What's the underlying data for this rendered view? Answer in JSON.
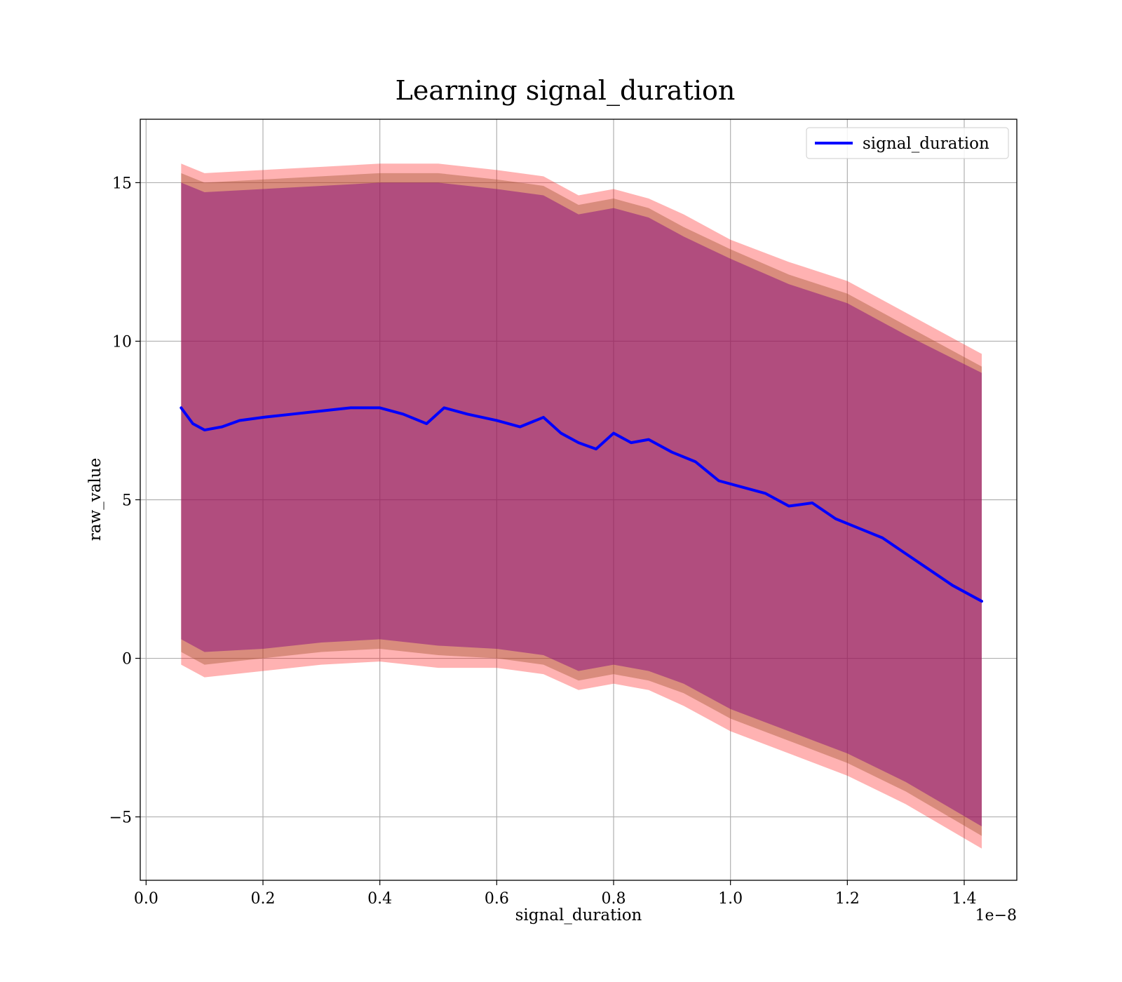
{
  "chart_data": {
    "type": "line",
    "title": "Learning signal_duration",
    "xlabel": "signal_duration",
    "ylabel": "raw_value",
    "x_offset_text": "1e−8",
    "x_scale_note": "x values shown in units of 1e-8",
    "xlim": [
      -0.01,
      1.49
    ],
    "ylim": [
      -7.0,
      17.0
    ],
    "grid": true,
    "legend_position": "top-right",
    "x_ticks": [
      {
        "value": 0.0,
        "label": "0.0"
      },
      {
        "value": 0.2,
        "label": "0.2"
      },
      {
        "value": 0.4,
        "label": "0.4"
      },
      {
        "value": 0.6,
        "label": "0.6"
      },
      {
        "value": 0.8,
        "label": "0.8"
      },
      {
        "value": 1.0,
        "label": "1.0"
      },
      {
        "value": 1.2,
        "label": "1.2"
      },
      {
        "value": 1.4,
        "label": "1.4"
      }
    ],
    "y_ticks": [
      {
        "value": -5,
        "label": "−5"
      },
      {
        "value": 0,
        "label": "0"
      },
      {
        "value": 5,
        "label": "5"
      },
      {
        "value": 10,
        "label": "10"
      },
      {
        "value": 15,
        "label": "15"
      }
    ],
    "colors": {
      "line": "#0000ff",
      "outer_band": "#ff0000",
      "middle_band": "#a0522d",
      "inner_band": "#800080",
      "grid": "#b0b0b0"
    },
    "series": [
      {
        "name": "signal_duration",
        "x": [
          0.06,
          0.08,
          0.1,
          0.13,
          0.16,
          0.2,
          0.25,
          0.3,
          0.35,
          0.4,
          0.44,
          0.48,
          0.51,
          0.55,
          0.6,
          0.64,
          0.68,
          0.71,
          0.74,
          0.77,
          0.8,
          0.83,
          0.86,
          0.9,
          0.94,
          0.98,
          1.02,
          1.06,
          1.1,
          1.14,
          1.18,
          1.22,
          1.26,
          1.3,
          1.34,
          1.38,
          1.43
        ],
        "values": [
          7.9,
          7.4,
          7.2,
          7.3,
          7.5,
          7.6,
          7.7,
          7.8,
          7.9,
          7.9,
          7.7,
          7.4,
          7.9,
          7.7,
          7.5,
          7.3,
          7.6,
          7.1,
          6.8,
          6.6,
          7.1,
          6.8,
          6.9,
          6.5,
          6.2,
          5.6,
          5.4,
          5.2,
          4.8,
          4.9,
          4.4,
          4.1,
          3.8,
          3.3,
          2.8,
          2.3,
          1.8
        ]
      }
    ],
    "bands": [
      {
        "color": "#ff0000",
        "opacity": 0.3,
        "x": [
          0.06,
          0.1,
          0.2,
          0.3,
          0.4,
          0.5,
          0.6,
          0.68,
          0.74,
          0.8,
          0.86,
          0.92,
          1.0,
          1.1,
          1.2,
          1.3,
          1.43
        ],
        "upper": [
          15.6,
          15.3,
          15.4,
          15.5,
          15.6,
          15.6,
          15.4,
          15.2,
          14.6,
          14.8,
          14.5,
          14.0,
          13.2,
          12.5,
          11.9,
          10.9,
          9.6
        ],
        "lower": [
          -0.2,
          -0.6,
          -0.4,
          -0.2,
          -0.1,
          -0.3,
          -0.3,
          -0.5,
          -1.0,
          -0.8,
          -1.0,
          -1.5,
          -2.3,
          -3.0,
          -3.7,
          -4.6,
          -6.0
        ]
      },
      {
        "color": "#a0522d",
        "opacity": 0.4,
        "x": [
          0.06,
          0.1,
          0.2,
          0.3,
          0.4,
          0.5,
          0.6,
          0.68,
          0.74,
          0.8,
          0.86,
          0.92,
          1.0,
          1.1,
          1.2,
          1.3,
          1.43
        ],
        "upper": [
          15.3,
          15.0,
          15.1,
          15.2,
          15.3,
          15.3,
          15.1,
          14.9,
          14.3,
          14.5,
          14.2,
          13.6,
          12.9,
          12.1,
          11.5,
          10.5,
          9.2
        ],
        "lower": [
          0.2,
          -0.2,
          0.0,
          0.2,
          0.3,
          0.1,
          0.0,
          -0.2,
          -0.7,
          -0.5,
          -0.7,
          -1.1,
          -1.9,
          -2.6,
          -3.3,
          -4.2,
          -5.6
        ]
      },
      {
        "color": "#800080",
        "opacity": 0.45,
        "x": [
          0.06,
          0.1,
          0.2,
          0.3,
          0.4,
          0.5,
          0.6,
          0.68,
          0.74,
          0.8,
          0.86,
          0.92,
          1.0,
          1.1,
          1.2,
          1.3,
          1.43
        ],
        "upper": [
          15.0,
          14.7,
          14.8,
          14.9,
          15.0,
          15.0,
          14.8,
          14.6,
          14.0,
          14.2,
          13.9,
          13.3,
          12.6,
          11.8,
          11.2,
          10.2,
          9.0
        ],
        "lower": [
          0.6,
          0.2,
          0.3,
          0.5,
          0.6,
          0.4,
          0.3,
          0.1,
          -0.4,
          -0.2,
          -0.4,
          -0.8,
          -1.6,
          -2.3,
          -3.0,
          -3.9,
          -5.3
        ]
      }
    ]
  }
}
